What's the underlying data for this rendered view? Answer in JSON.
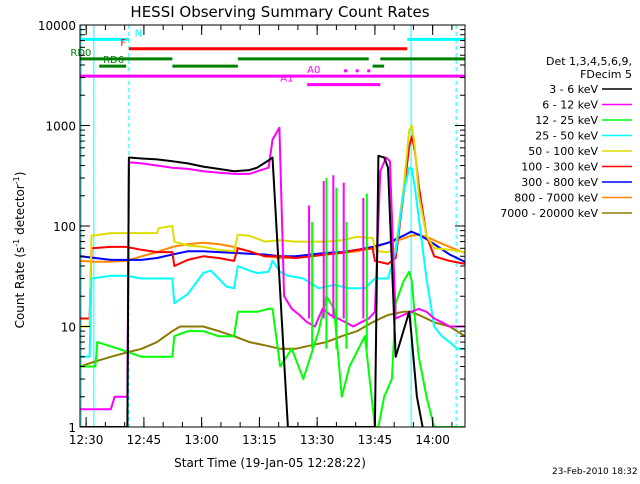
{
  "chart_data": {
    "type": "line",
    "title": "HESSI Observing Summary Count Rates",
    "xlabel": "Start Time (19-Jan-05 12:28:22)",
    "ylabel_parts": [
      "Count Rate (s",
      "-1",
      " detector",
      "-1",
      ")"
    ],
    "ylabel": "Count Rate (s-1 detector-1)",
    "xlim": [
      0,
      100
    ],
    "ylim": [
      1,
      10000
    ],
    "yscale": "log",
    "x_ticks": [
      {
        "label": "12:30",
        "t": 1.6
      },
      {
        "label": "12:45",
        "t": 16.6
      },
      {
        "label": "13:00",
        "t": 31.6
      },
      {
        "label": "13:15",
        "t": 46.6
      },
      {
        "label": "13:30",
        "t": 61.6
      },
      {
        "label": "13:45",
        "t": 76.6
      },
      {
        "label": "14:00",
        "t": 91.6
      }
    ],
    "y_ticks": [
      {
        "label": "1",
        "v": 1
      },
      {
        "label": "10",
        "v": 10
      },
      {
        "label": "100",
        "v": 100
      },
      {
        "label": "1000",
        "v": 1000
      },
      {
        "label": "10000",
        "v": 10000
      }
    ],
    "legend_header": [
      "Det 1,3,4,5,6,9,",
      "FDecim 5"
    ],
    "series": [
      {
        "name": "3 - 6 keV",
        "color": "#000000",
        "x": [
          0,
          4,
          4.5,
          12.3,
          12.7,
          16,
          20,
          24,
          28,
          32,
          36,
          40,
          44,
          46,
          49,
          50,
          54,
          58,
          62,
          66,
          70,
          74,
          76.6,
          77.5,
          79,
          80,
          82,
          84,
          85.5,
          86,
          86.8,
          87.5,
          89
        ],
        "y": [
          1,
          1,
          1,
          1,
          480,
          470,
          460,
          440,
          420,
          390,
          370,
          350,
          360,
          380,
          450,
          480,
          1,
          1,
          1,
          1,
          1,
          1,
          1,
          500,
          480,
          380,
          5,
          9,
          14,
          9,
          4,
          2,
          1
        ]
      },
      {
        "name": "6 - 12 keV",
        "color": "#ff00ff",
        "x": [
          0,
          8,
          9,
          12.3,
          12.7,
          16,
          20,
          24,
          28,
          32,
          36,
          40,
          44,
          46,
          49,
          50,
          51.8,
          53,
          55,
          57,
          59,
          61,
          63,
          65,
          67,
          69,
          71,
          73,
          75,
          76.6,
          78,
          79.5,
          80.5,
          82,
          84,
          86,
          88,
          90,
          92,
          94,
          96,
          98,
          100
        ],
        "y": [
          1.5,
          1.5,
          2,
          2,
          430,
          420,
          400,
          380,
          370,
          350,
          340,
          330,
          330,
          350,
          380,
          720,
          950,
          20,
          15,
          13,
          11,
          10,
          15,
          13,
          12,
          11,
          10,
          11,
          12,
          14,
          350,
          480,
          440,
          12,
          13,
          14,
          15,
          14,
          12,
          11,
          10,
          10,
          10
        ]
      },
      {
        "name": "12 - 25 keV",
        "color": "#00ff00",
        "x": [
          0,
          4,
          4.5,
          10,
          16,
          20,
          24,
          24.5,
          28,
          32,
          36,
          40,
          41,
          44,
          46,
          49,
          50,
          52,
          55,
          58,
          62,
          64,
          66,
          68,
          70,
          74,
          76.6,
          77.5,
          79,
          81,
          82,
          84,
          85.5,
          86.2,
          87,
          88,
          90,
          92,
          95,
          100
        ],
        "y": [
          4,
          4,
          7,
          6,
          5,
          5,
          5,
          8,
          9,
          9,
          8,
          8,
          14,
          14,
          14,
          15,
          15,
          4,
          6,
          3,
          9,
          20,
          15,
          2,
          4,
          8,
          1,
          1,
          2,
          3,
          17,
          28,
          35,
          28,
          12,
          5,
          2,
          1,
          1,
          1
        ]
      },
      {
        "name": "25 - 50 keV",
        "color": "#00ffff",
        "x": [
          0,
          2.5,
          3,
          8,
          12,
          16,
          20,
          24,
          24.5,
          28,
          32,
          34,
          38,
          40,
          41,
          44,
          46,
          49,
          50,
          52,
          54,
          58,
          62,
          66,
          70,
          74,
          76.6,
          77.5,
          78,
          80,
          82,
          84,
          85.5,
          86.2,
          87,
          88,
          90,
          92,
          94,
          96,
          98,
          100
        ],
        "y": [
          5,
          5,
          30,
          32,
          32,
          30,
          30,
          30,
          17,
          21,
          34,
          36,
          25,
          24,
          40,
          36,
          34,
          35,
          45,
          35,
          32,
          30,
          24,
          26,
          24,
          24,
          30,
          30,
          30,
          30,
          55,
          210,
          380,
          370,
          240,
          120,
          30,
          10,
          8,
          7,
          6,
          6
        ]
      },
      {
        "name": "50 - 100 keV",
        "color": "#dddd00",
        "x": [
          0,
          2.5,
          3,
          8,
          12,
          16,
          20,
          20.5,
          24,
          24.5,
          28,
          32,
          36,
          40,
          41,
          44,
          48,
          52,
          56,
          60,
          64,
          68,
          72,
          76,
          76.6,
          77,
          80,
          82,
          84,
          85.5,
          86.2,
          87,
          88,
          90,
          92,
          96,
          100
        ],
        "y": [
          10,
          10,
          80,
          85,
          85,
          85,
          85,
          95,
          100,
          70,
          64,
          62,
          58,
          56,
          82,
          80,
          70,
          72,
          70,
          70,
          70,
          72,
          78,
          76,
          60,
          56,
          55,
          60,
          230,
          900,
          1000,
          600,
          200,
          80,
          60,
          58,
          55
        ]
      },
      {
        "name": "100 - 300 keV",
        "color": "#ff0000",
        "x": [
          0,
          2.5,
          3,
          8,
          12,
          16,
          20,
          24,
          24.5,
          28,
          32,
          36,
          40,
          41,
          44,
          48,
          52,
          56,
          60,
          64,
          68,
          72,
          76,
          76.6,
          80,
          82,
          84,
          85.5,
          86.2,
          87,
          88,
          90,
          92,
          96,
          100
        ],
        "y": [
          12,
          12,
          60,
          62,
          62,
          58,
          55,
          55,
          40,
          46,
          50,
          48,
          45,
          60,
          56,
          50,
          50,
          48,
          50,
          52,
          54,
          58,
          60,
          45,
          42,
          48,
          200,
          620,
          780,
          550,
          250,
          80,
          50,
          45,
          42
        ]
      },
      {
        "name": "300 - 800 keV",
        "color": "#0000ff",
        "x": [
          0,
          4,
          8,
          12,
          16,
          20,
          24,
          28,
          32,
          36,
          40,
          44,
          48,
          52,
          56,
          60,
          64,
          68,
          72,
          76,
          80,
          84,
          86,
          88,
          90,
          92,
          96,
          100
        ],
        "y": [
          50,
          48,
          46,
          46,
          46,
          48,
          52,
          56,
          56,
          55,
          54,
          53,
          52,
          50,
          50,
          52,
          54,
          55,
          58,
          62,
          68,
          80,
          88,
          82,
          74,
          66,
          52,
          44
        ]
      },
      {
        "name": "800 - 7000 keV",
        "color": "#ff8800",
        "x": [
          0,
          4,
          8,
          12,
          16,
          20,
          24,
          28,
          32,
          36,
          40,
          44,
          48,
          52,
          56,
          60,
          64,
          68,
          72,
          76,
          80,
          84,
          86,
          88,
          90,
          92,
          96,
          100
        ],
        "y": [
          45,
          44,
          44,
          45,
          50,
          55,
          62,
          66,
          68,
          66,
          62,
          56,
          50,
          48,
          48,
          50,
          52,
          54,
          56,
          60,
          68,
          75,
          80,
          82,
          78,
          72,
          62,
          54
        ]
      },
      {
        "name": "7000 - 20000 keV",
        "color": "#8b7a00",
        "x": [
          0,
          4,
          8,
          12,
          16,
          20,
          24,
          26,
          28,
          32,
          36,
          40,
          44,
          48,
          52,
          56,
          60,
          64,
          68,
          72,
          76,
          78,
          80,
          82,
          84,
          86,
          88,
          90,
          92,
          96,
          100
        ],
        "y": [
          4,
          4.5,
          5,
          5.5,
          6,
          7,
          9,
          10,
          10,
          10,
          9,
          8,
          7,
          6.5,
          6,
          6,
          6.5,
          7,
          8,
          9,
          11,
          12,
          13,
          13.5,
          14,
          14,
          13,
          12,
          11,
          10,
          8
        ]
      }
    ],
    "spikes_magenta": [
      {
        "t": 59.5,
        "top": 160
      },
      {
        "t": 63.3,
        "top": 280
      },
      {
        "t": 65.8,
        "top": 320
      },
      {
        "t": 68.5,
        "top": 270
      },
      {
        "t": 73.6,
        "top": 190
      }
    ],
    "spikes_green": [
      {
        "t": 60.3,
        "top": 110
      },
      {
        "t": 64.0,
        "top": 300
      },
      {
        "t": 66.6,
        "top": 240
      },
      {
        "t": 69.2,
        "top": 110
      },
      {
        "t": 74.5,
        "top": 210
      }
    ],
    "state_bars": [
      {
        "label": "N",
        "color": "#00ffff",
        "v": 7200,
        "segments": [
          [
            0,
            12.7
          ],
          [
            85,
            100
          ]
        ],
        "label_t": 14.2
      },
      {
        "label": "F",
        "color": "#ff0000",
        "v": 5800,
        "segments": [
          [
            12.7,
            85
          ]
        ],
        "label_t": 10.5
      },
      {
        "label": "RD0",
        "color": "#008000",
        "v": 4600,
        "segments": [
          [
            0,
            24
          ],
          [
            41,
            75
          ],
          [
            78,
            100
          ]
        ],
        "label_t": -2.5
      },
      {
        "label": "RD6",
        "color": "#008000",
        "v": 3900,
        "segments": [
          [
            5,
            12
          ],
          [
            24,
            41
          ],
          [
            76,
            79
          ]
        ],
        "label_t": 6
      },
      {
        "label": "A0",
        "color": "#ff00ff",
        "v": 3100,
        "segments": [
          [
            0,
            100
          ]
        ],
        "label_t": 59
      },
      {
        "label": "A1",
        "color": "#ff00ff",
        "v": 2550,
        "segments": [
          [
            59,
            78
          ]
        ],
        "label_t": 52
      }
    ],
    "a0_dots": [
      69,
      72,
      75
    ],
    "vlines_solid": [
      {
        "t": 86,
        "color": "#00ffff"
      }
    ],
    "vlines_dashed": [
      {
        "t": 12.7,
        "color": "#00ffff"
      },
      {
        "t": 97.7,
        "color": "#00ffff"
      }
    ],
    "edge_lines": [
      {
        "t": 0.3,
        "color": "#00ffff"
      },
      {
        "t": 3.6,
        "color": "#00ffff"
      }
    ],
    "grid": false,
    "legend_position": "right"
  },
  "footer": {
    "date_stamp": "23-Feb-2010 18:32"
  }
}
